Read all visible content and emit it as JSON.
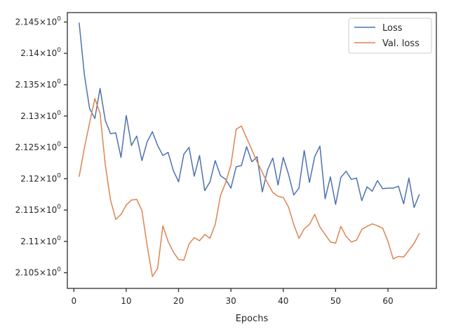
{
  "chart_data": {
    "type": "line",
    "xlabel": "Epochs",
    "ylabel": "",
    "xlim": [
      -1.25,
      69.25
    ],
    "ylim": [
      2.1025,
      2.1465
    ],
    "x_ticks": [
      0,
      10,
      20,
      30,
      40,
      50,
      60
    ],
    "y_ticks": [
      {
        "value": 2.105,
        "mantissa": "2.105"
      },
      {
        "value": 2.11,
        "mantissa": "2.11"
      },
      {
        "value": 2.115,
        "mantissa": "2.115"
      },
      {
        "value": 2.12,
        "mantissa": "2.12"
      },
      {
        "value": 2.125,
        "mantissa": "2.125"
      },
      {
        "value": 2.13,
        "mantissa": "2.13"
      },
      {
        "value": 2.135,
        "mantissa": "2.135"
      },
      {
        "value": 2.14,
        "mantissa": "2.14"
      },
      {
        "value": 2.145,
        "mantissa": "2.145"
      }
    ],
    "y_tick_base": "10",
    "y_tick_exponent": "0",
    "y_tick_prefix": "×",
    "legend_position": "upper right",
    "x": [
      1,
      2,
      3,
      4,
      5,
      6,
      7,
      8,
      9,
      10,
      11,
      12,
      13,
      14,
      15,
      16,
      17,
      18,
      19,
      20,
      21,
      22,
      23,
      24,
      25,
      26,
      27,
      28,
      29,
      30,
      31,
      32,
      33,
      34,
      35,
      36,
      37,
      38,
      39,
      40,
      41,
      42,
      43,
      44,
      45,
      46,
      47,
      48,
      49,
      50,
      51,
      52,
      53,
      54,
      55,
      56,
      57,
      58,
      59,
      60,
      61,
      62,
      63,
      64,
      65,
      66
    ],
    "series": [
      {
        "name": "Loss",
        "color": "#4c72b0",
        "values": [
          2.1449,
          2.1366,
          2.1312,
          2.1296,
          2.1344,
          2.1293,
          2.1272,
          2.1273,
          2.1234,
          2.1301,
          2.1253,
          2.1268,
          2.1229,
          2.1259,
          2.1275,
          2.1253,
          2.1237,
          2.1242,
          2.1213,
          2.1195,
          2.1239,
          2.125,
          2.1204,
          2.1237,
          2.1181,
          2.1195,
          2.1229,
          2.1205,
          2.1199,
          2.1185,
          2.1219,
          2.1221,
          2.1251,
          2.1227,
          2.1235,
          2.1179,
          2.1214,
          2.1233,
          2.119,
          2.1234,
          2.1207,
          2.1174,
          2.1185,
          2.1245,
          2.1194,
          2.1235,
          2.1252,
          2.1168,
          2.1203,
          2.1159,
          2.1202,
          2.1212,
          2.1199,
          2.1201,
          2.1165,
          2.1187,
          2.118,
          2.1197,
          2.1184,
          2.1185,
          2.1185,
          2.1188,
          2.116,
          2.1201,
          2.1154,
          2.1175
        ]
      },
      {
        "name": "Val. loss",
        "color": "#dd8452",
        "values": [
          2.1203,
          2.1249,
          2.1289,
          2.1328,
          2.1304,
          2.1222,
          2.1166,
          2.1135,
          2.1143,
          2.1158,
          2.1166,
          2.1167,
          2.1149,
          2.1093,
          2.1044,
          2.1057,
          2.1125,
          2.11,
          2.1083,
          2.1071,
          2.107,
          2.1096,
          2.1106,
          2.1101,
          2.1111,
          2.1105,
          2.1127,
          2.1173,
          2.1194,
          2.1222,
          2.1279,
          2.1284,
          2.1265,
          2.1246,
          2.1227,
          2.121,
          2.1193,
          2.1178,
          2.1172,
          2.117,
          2.1155,
          2.1127,
          2.1105,
          2.112,
          2.1127,
          2.1143,
          2.1123,
          2.1111,
          2.1099,
          2.1097,
          2.1124,
          2.1108,
          2.1099,
          2.1102,
          2.1119,
          2.1124,
          2.1128,
          2.1125,
          2.1121,
          2.11,
          2.1072,
          2.1076,
          2.1075,
          2.1086,
          2.1097,
          2.1113
        ]
      }
    ]
  }
}
